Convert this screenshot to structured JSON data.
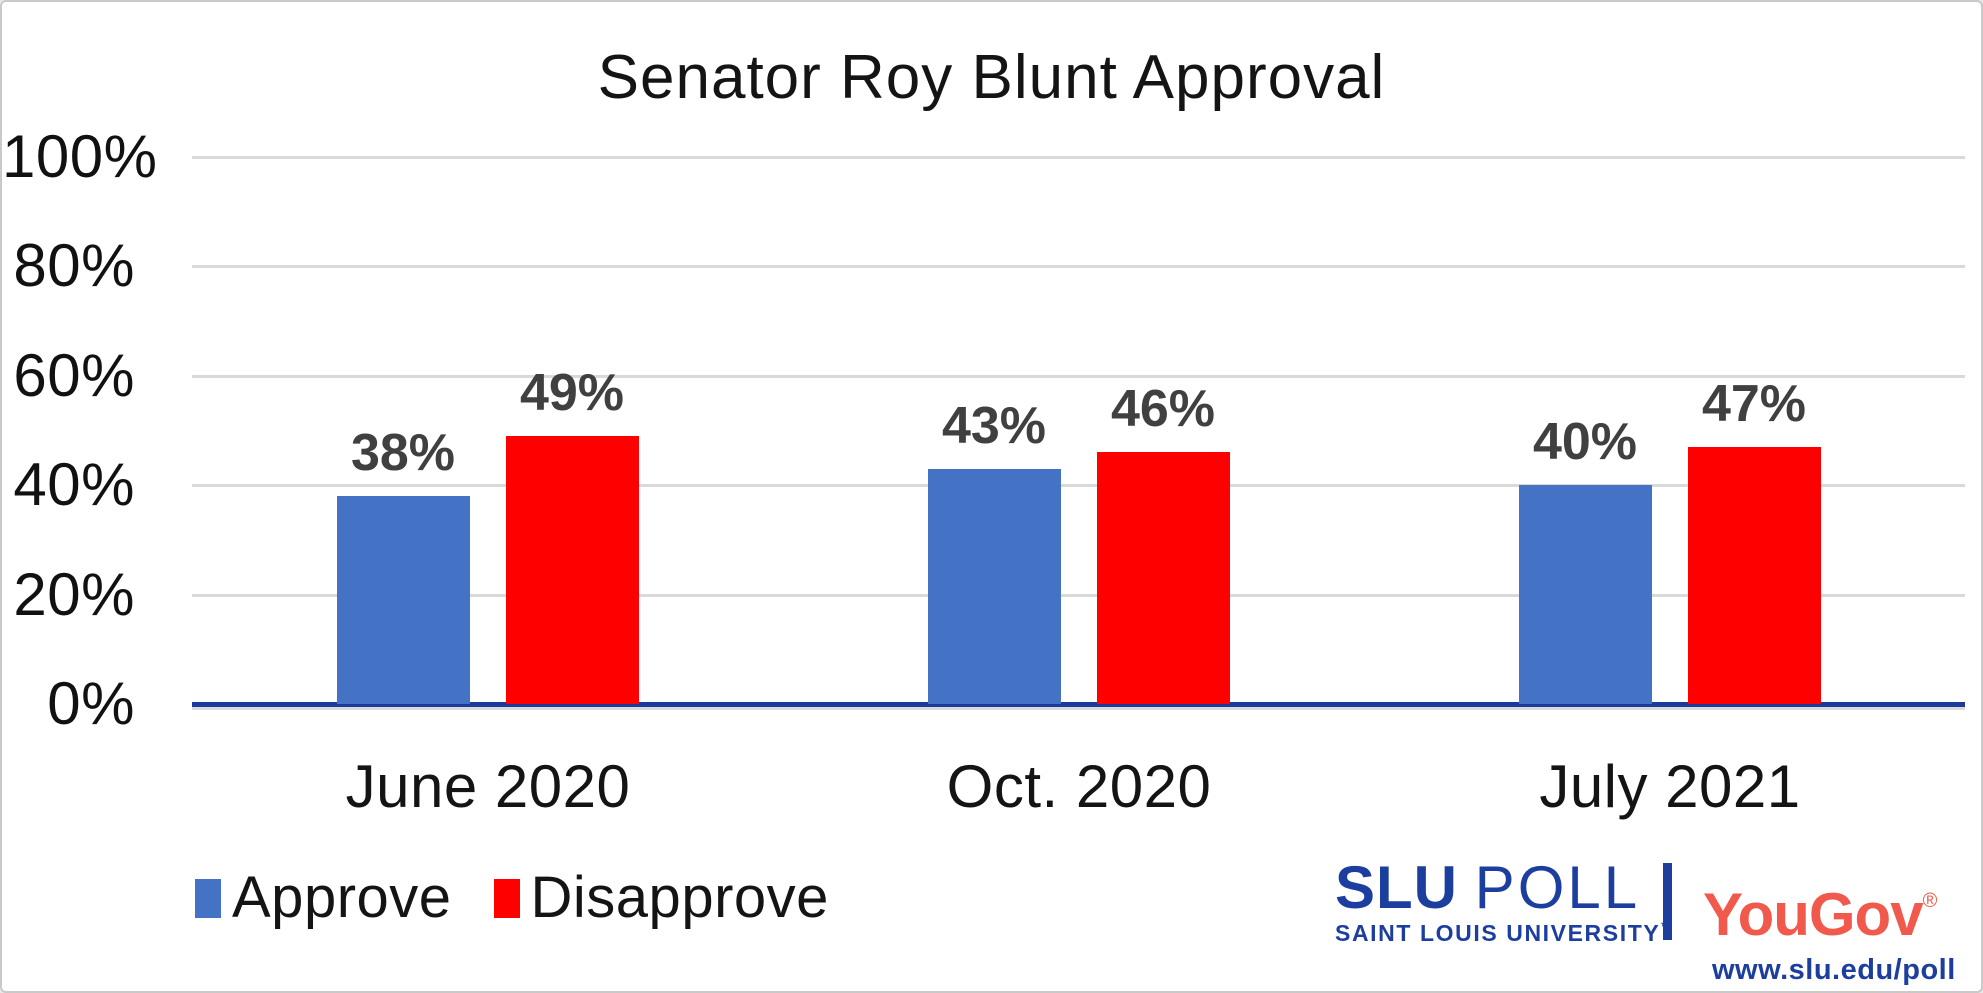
{
  "chart_data": {
    "type": "bar",
    "title": "Senator Roy Blunt Approval",
    "categories": [
      "June 2020",
      "Oct. 2020",
      "July 2021"
    ],
    "series": [
      {
        "name": "Approve",
        "color": "#4472C4",
        "values": [
          38,
          43,
          40
        ],
        "labels": [
          "38%",
          "43%",
          "40%"
        ]
      },
      {
        "name": "Disapprove",
        "color": "#FF0000",
        "values": [
          49,
          46,
          47
        ],
        "labels": [
          "49%",
          "46%",
          "47%"
        ]
      }
    ],
    "y_axis": {
      "min": 0,
      "max": 100,
      "step": 20,
      "ticks": [
        {
          "value": 100,
          "label": "100%"
        },
        {
          "value": 80,
          "label": "80%"
        },
        {
          "value": 60,
          "label": "60%"
        },
        {
          "value": 40,
          "label": "40%"
        },
        {
          "value": 20,
          "label": "20%"
        },
        {
          "value": 0,
          "label": "0%"
        }
      ]
    },
    "grid": true,
    "legend_position": "bottom-left"
  },
  "colors": {
    "approve_blue": "#4472C4",
    "disapprove_red": "#FF0000",
    "gridline_gray": "#D9D9D9",
    "axis_blue": "#1B3A9E",
    "value_label_gray": "#404040",
    "text_black": "#141414"
  },
  "branding": {
    "slu_word": "SLU",
    "poll_word": "POLL",
    "slu_sub": "SAINT LOUIS UNIVERSITY",
    "slu_tm": "™",
    "yougov": "YouGov",
    "yougov_reg": "®",
    "url": "www.slu.edu/poll",
    "slu_blue": "#1C3E9E",
    "yougov_red": "#F0594B"
  }
}
